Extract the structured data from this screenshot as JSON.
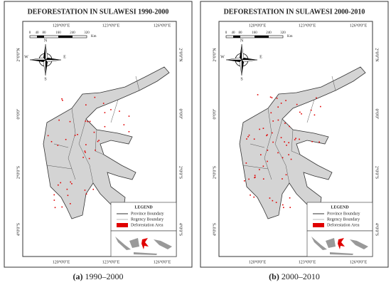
{
  "panels": [
    {
      "title": "DEFORESTATION IN SULAWESI 1990-2000",
      "caption_label": "(a)",
      "caption_text": "1990–2000"
    },
    {
      "title": "DEFORESTATION IN SULAWESI 2000-2010",
      "caption_label": "(b)",
      "caption_text": "2000–2010"
    }
  ],
  "longitudes": [
    "120°0'0\"E",
    "123°0'0\"E",
    "126°0'0\"E"
  ],
  "latitudes": [
    "2°0'0\"N",
    "0°0'0\"",
    "2°0'0\"S",
    "4°0'0\"S"
  ],
  "scale_bar": {
    "ticks": [
      "0",
      "40",
      "80",
      "160",
      "240",
      "320"
    ],
    "unit": "Km"
  },
  "compass": {
    "n": "N",
    "s": "S",
    "e": "E",
    "w": "W"
  },
  "legend": {
    "title": "LEGEND",
    "items": [
      "Province Boundary",
      "Regency Boundary",
      "Deforestation Area"
    ]
  }
}
